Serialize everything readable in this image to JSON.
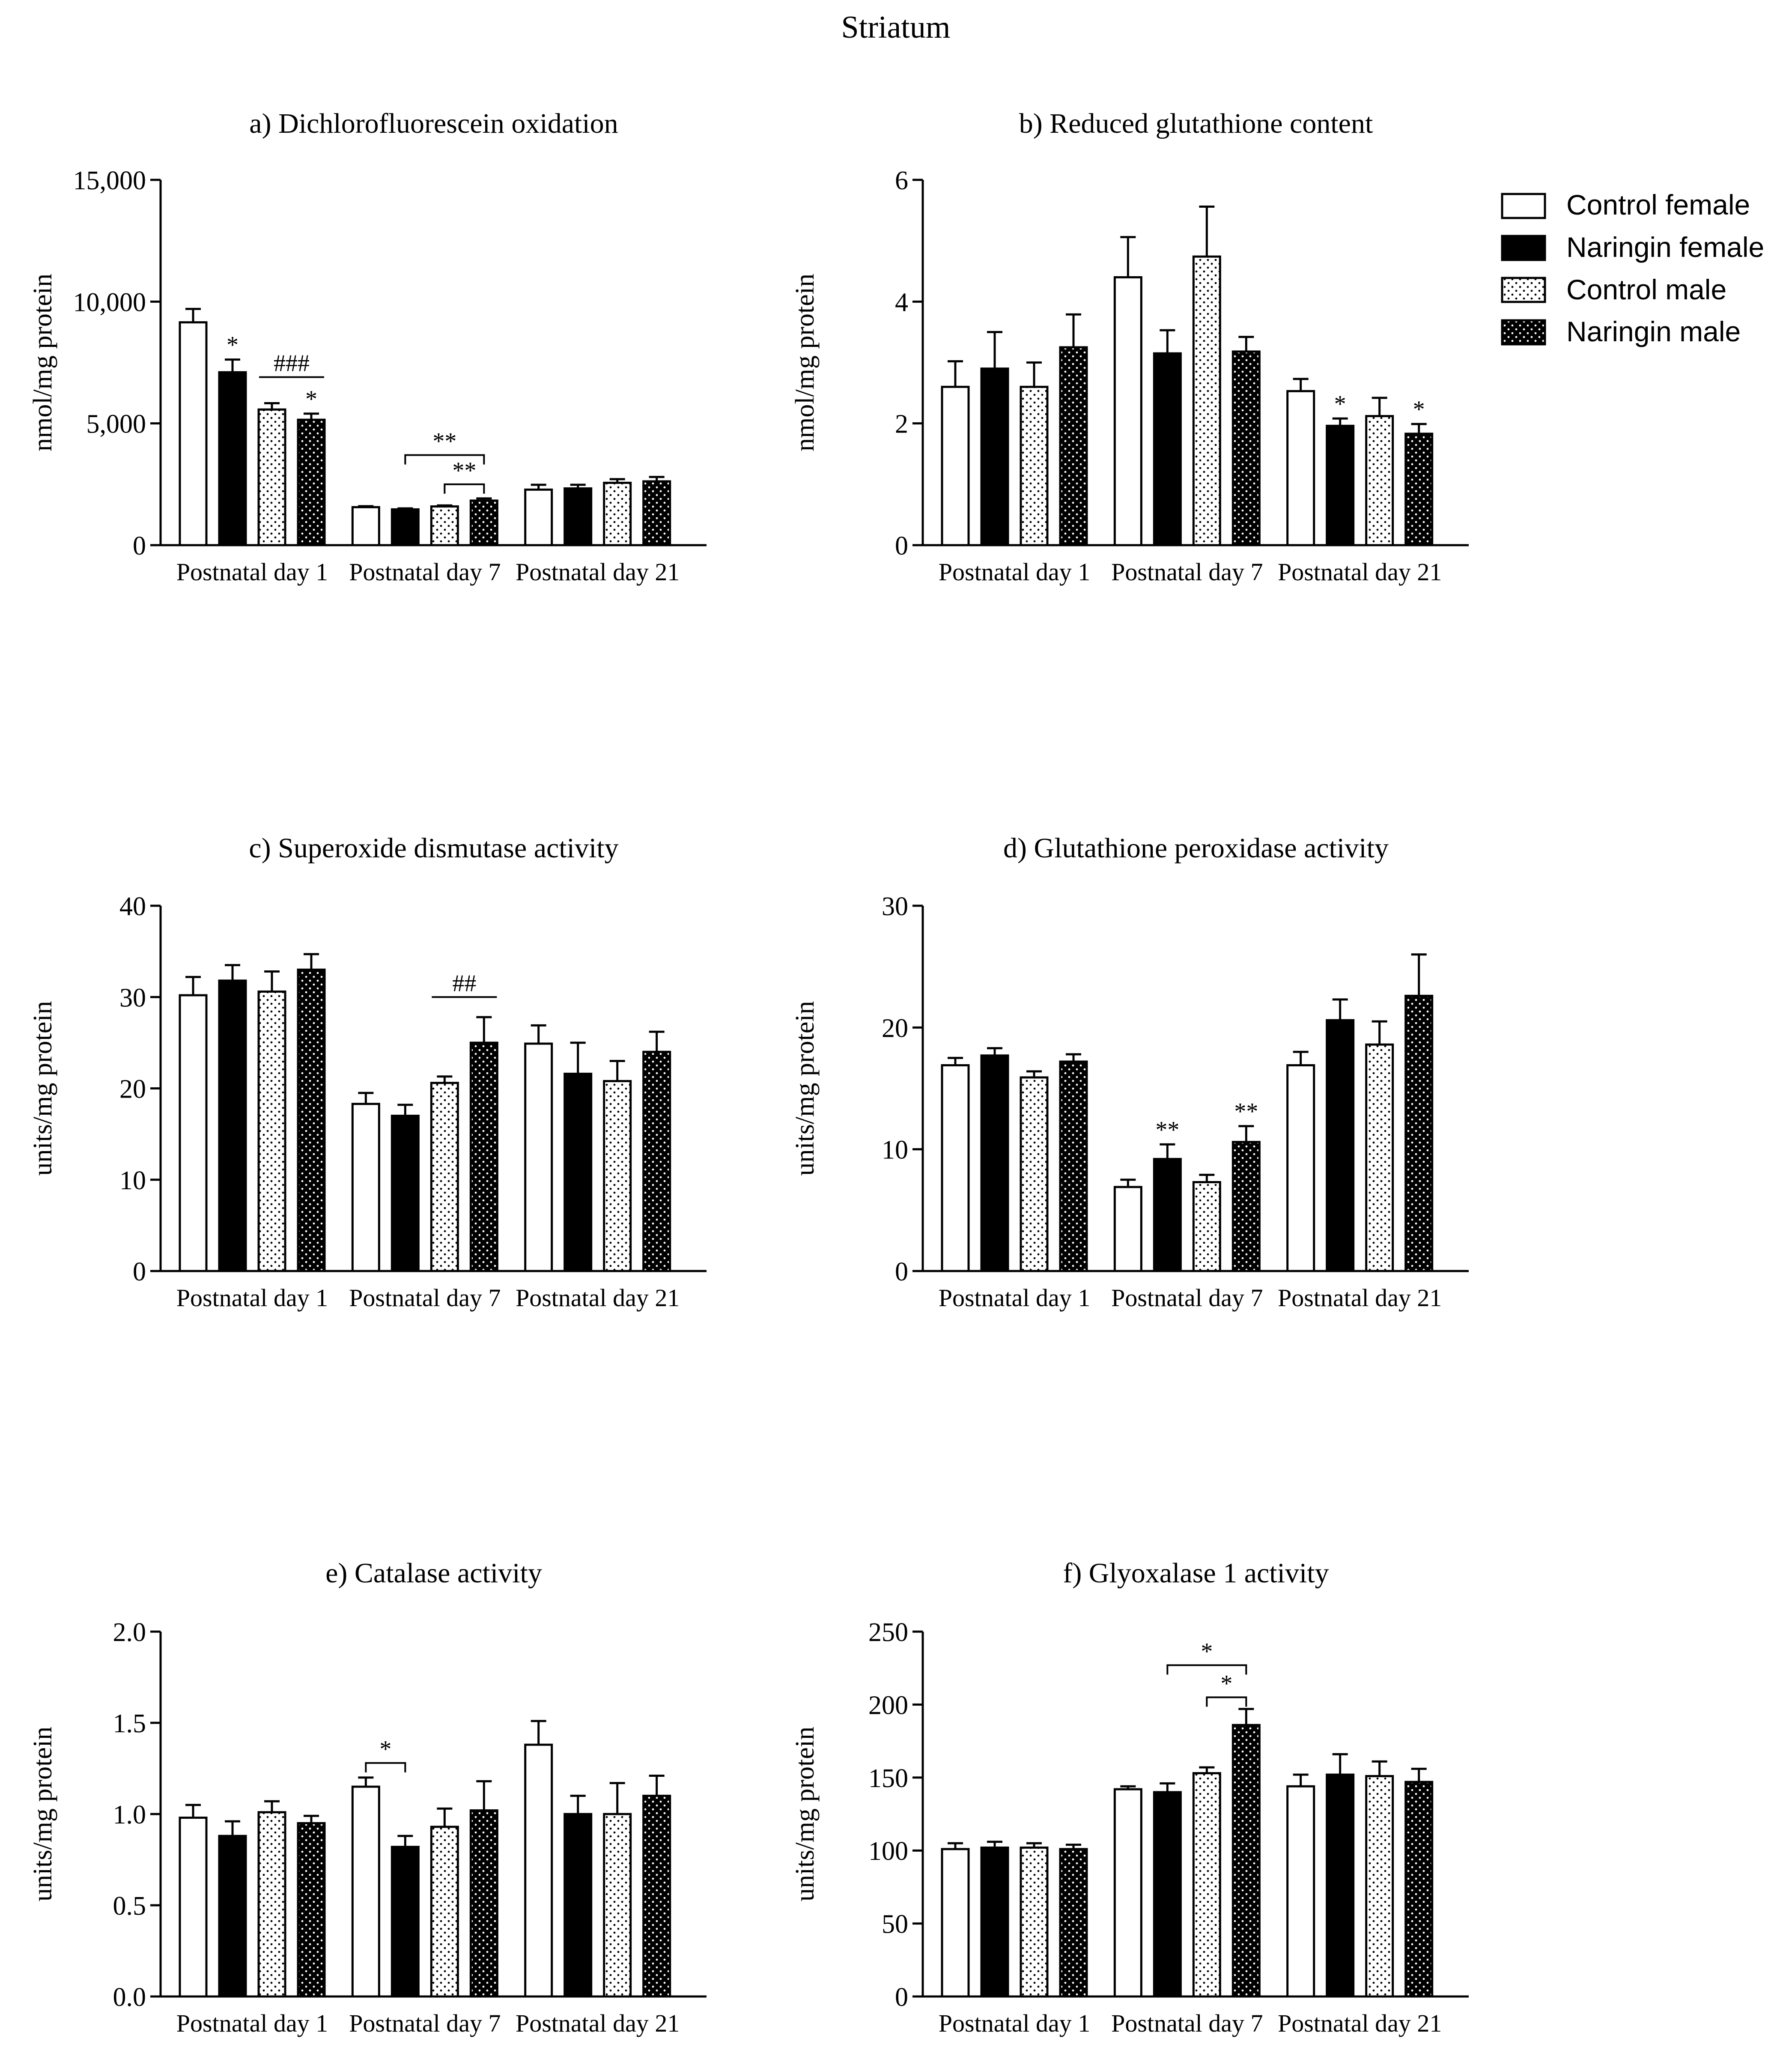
{
  "figure_title": "Striatum",
  "legend": {
    "items": [
      {
        "label": "Control female",
        "pattern": "white"
      },
      {
        "label": "Naringin female",
        "pattern": "black"
      },
      {
        "label": "Control male",
        "pattern": "dots-light"
      },
      {
        "label": "Naringin male",
        "pattern": "dots-dark"
      }
    ]
  },
  "colors": {
    "stroke": "#000000",
    "fill_black": "#000000",
    "fill_white": "#ffffff"
  },
  "chart_data": [
    {
      "id": "a",
      "type": "bar",
      "title": "a) Dichlorofluorescein oxidation",
      "ylabel": "nmol/mg protein",
      "categories": [
        "Postnatal day 1",
        "Postnatal day 7",
        "Postnatal day 21"
      ],
      "ylim": [
        0,
        15000
      ],
      "yticks": [
        0,
        5000,
        10000,
        15000
      ],
      "ytick_labels": [
        "0",
        "5,000",
        "10,000",
        "15,000"
      ],
      "series": [
        {
          "name": "Control female",
          "values": [
            9150,
            1560,
            2280
          ],
          "errors": [
            550,
            40,
            200
          ]
        },
        {
          "name": "Naringin female",
          "values": [
            7100,
            1470,
            2330
          ],
          "errors": [
            520,
            40,
            150
          ]
        },
        {
          "name": "Control male",
          "values": [
            5570,
            1590,
            2560
          ],
          "errors": [
            260,
            40,
            150
          ]
        },
        {
          "name": "Naringin male",
          "values": [
            5150,
            1830,
            2620
          ],
          "errors": [
            250,
            90,
            180
          ]
        }
      ],
      "stars": [
        {
          "text": "*",
          "cat": 0,
          "ser": 1
        },
        {
          "text": "*",
          "cat": 0,
          "ser": 3
        }
      ],
      "brackets": [
        {
          "text": "###",
          "cat": 0,
          "from": 2,
          "to": 3,
          "y": 6900,
          "style": "line"
        },
        {
          "text": "**",
          "cat": 1,
          "from": 1,
          "to": 3,
          "y": 3700,
          "style": "bracket"
        },
        {
          "text": "**",
          "cat": 1,
          "from": 2,
          "to": 3,
          "y": 2500,
          "style": "bracket"
        }
      ]
    },
    {
      "id": "b",
      "type": "bar",
      "title": "b) Reduced glutathione content",
      "ylabel": "nmol/mg protein",
      "categories": [
        "Postnatal day 1",
        "Postnatal day 7",
        "Postnatal day 21"
      ],
      "ylim": [
        0,
        6
      ],
      "yticks": [
        0,
        2,
        4,
        6
      ],
      "ytick_labels": [
        "0",
        "2",
        "4",
        "6"
      ],
      "series": [
        {
          "name": "Control female",
          "values": [
            2.6,
            4.4,
            2.53
          ],
          "errors": [
            0.42,
            0.66,
            0.2
          ]
        },
        {
          "name": "Naringin female",
          "values": [
            2.9,
            3.15,
            1.96
          ],
          "errors": [
            0.6,
            0.38,
            0.12
          ]
        },
        {
          "name": "Control male",
          "values": [
            2.6,
            4.74,
            2.12
          ],
          "errors": [
            0.4,
            0.82,
            0.3
          ]
        },
        {
          "name": "Naringin male",
          "values": [
            3.25,
            3.18,
            1.83
          ],
          "errors": [
            0.54,
            0.24,
            0.16
          ]
        }
      ],
      "stars": [
        {
          "text": "*",
          "cat": 2,
          "ser": 1
        },
        {
          "text": "*",
          "cat": 2,
          "ser": 3
        }
      ],
      "brackets": []
    },
    {
      "id": "c",
      "type": "bar",
      "title": "c) Superoxide dismutase activity",
      "ylabel": "units/mg protein",
      "categories": [
        "Postnatal day 1",
        "Postnatal day 7",
        "Postnatal day 21"
      ],
      "ylim": [
        0,
        40
      ],
      "yticks": [
        0,
        10,
        20,
        30,
        40
      ],
      "ytick_labels": [
        "0",
        "10",
        "20",
        "30",
        "40"
      ],
      "series": [
        {
          "name": "Control female",
          "values": [
            30.2,
            18.3,
            24.9
          ],
          "errors": [
            2.0,
            1.2,
            2.0
          ]
        },
        {
          "name": "Naringin female",
          "values": [
            31.8,
            17.0,
            21.6
          ],
          "errors": [
            1.7,
            1.2,
            3.4
          ]
        },
        {
          "name": "Control male",
          "values": [
            30.6,
            20.6,
            20.8
          ],
          "errors": [
            2.2,
            0.7,
            2.2
          ]
        },
        {
          "name": "Naringin male",
          "values": [
            33.0,
            25.0,
            24.0
          ],
          "errors": [
            1.7,
            2.8,
            2.2
          ]
        }
      ],
      "stars": [],
      "brackets": [
        {
          "text": "##",
          "cat": 1,
          "from": 2,
          "to": 3,
          "y": 30.0,
          "style": "line"
        }
      ]
    },
    {
      "id": "d",
      "type": "bar",
      "title": "d) Glutathione peroxidase activity",
      "ylabel": "units/mg protein",
      "categories": [
        "Postnatal day 1",
        "Postnatal day 7",
        "Postnatal day 21"
      ],
      "ylim": [
        0,
        30
      ],
      "yticks": [
        0,
        10,
        20,
        30
      ],
      "ytick_labels": [
        "0",
        "10",
        "20",
        "30"
      ],
      "series": [
        {
          "name": "Control female",
          "values": [
            16.9,
            6.9,
            16.9
          ],
          "errors": [
            0.6,
            0.6,
            1.1
          ]
        },
        {
          "name": "Naringin female",
          "values": [
            17.7,
            9.2,
            20.6
          ],
          "errors": [
            0.6,
            1.2,
            1.7
          ]
        },
        {
          "name": "Control male",
          "values": [
            15.9,
            7.3,
            18.6
          ],
          "errors": [
            0.5,
            0.6,
            1.9
          ]
        },
        {
          "name": "Naringin male",
          "values": [
            17.2,
            10.6,
            22.6
          ],
          "errors": [
            0.6,
            1.3,
            3.4
          ]
        }
      ],
      "stars": [
        {
          "text": "**",
          "cat": 1,
          "ser": 1
        },
        {
          "text": "**",
          "cat": 1,
          "ser": 3
        }
      ],
      "brackets": []
    },
    {
      "id": "e",
      "type": "bar",
      "title": "e) Catalase activity",
      "ylabel": "units/mg protein",
      "categories": [
        "Postnatal day 1",
        "Postnatal day 7",
        "Postnatal day 21"
      ],
      "ylim": [
        0,
        2.0
      ],
      "yticks": [
        0,
        0.5,
        1.0,
        1.5,
        2.0
      ],
      "ytick_labels": [
        "0.0",
        "0.5",
        "1.0",
        "1.5",
        "2.0"
      ],
      "series": [
        {
          "name": "Control female",
          "values": [
            0.98,
            1.15,
            1.38
          ],
          "errors": [
            0.07,
            0.05,
            0.13
          ]
        },
        {
          "name": "Naringin female",
          "values": [
            0.88,
            0.82,
            1.0
          ],
          "errors": [
            0.08,
            0.06,
            0.1
          ]
        },
        {
          "name": "Control male",
          "values": [
            1.01,
            0.93,
            1.0
          ],
          "errors": [
            0.06,
            0.1,
            0.17
          ]
        },
        {
          "name": "Naringin male",
          "values": [
            0.95,
            1.02,
            1.1
          ],
          "errors": [
            0.04,
            0.16,
            0.11
          ]
        }
      ],
      "stars": [],
      "brackets": [
        {
          "text": "*",
          "cat": 1,
          "from": 0,
          "to": 1,
          "y": 1.28,
          "style": "bracket"
        }
      ]
    },
    {
      "id": "f",
      "type": "bar",
      "title": "f) Glyoxalase 1 activity",
      "ylabel": "units/mg protein",
      "categories": [
        "Postnatal day 1",
        "Postnatal day 7",
        "Postnatal day 21"
      ],
      "ylim": [
        0,
        250
      ],
      "yticks": [
        0,
        50,
        100,
        150,
        200,
        250
      ],
      "ytick_labels": [
        "0",
        "50",
        "100",
        "150",
        "200",
        "250"
      ],
      "series": [
        {
          "name": "Control female",
          "values": [
            101,
            142,
            144
          ],
          "errors": [
            4,
            2,
            8
          ]
        },
        {
          "name": "Naringin female",
          "values": [
            102,
            140,
            152
          ],
          "errors": [
            4,
            6,
            14
          ]
        },
        {
          "name": "Control male",
          "values": [
            102,
            153,
            151
          ],
          "errors": [
            3,
            4,
            10
          ]
        },
        {
          "name": "Naringin male",
          "values": [
            101,
            186,
            147
          ],
          "errors": [
            3,
            11,
            9
          ]
        }
      ],
      "stars": [],
      "brackets": [
        {
          "text": "*",
          "cat": 1,
          "from": 1,
          "to": 3,
          "y": 227,
          "style": "bracket"
        },
        {
          "text": "*",
          "cat": 1,
          "from": 2,
          "to": 3,
          "y": 205,
          "style": "bracket"
        }
      ]
    }
  ]
}
